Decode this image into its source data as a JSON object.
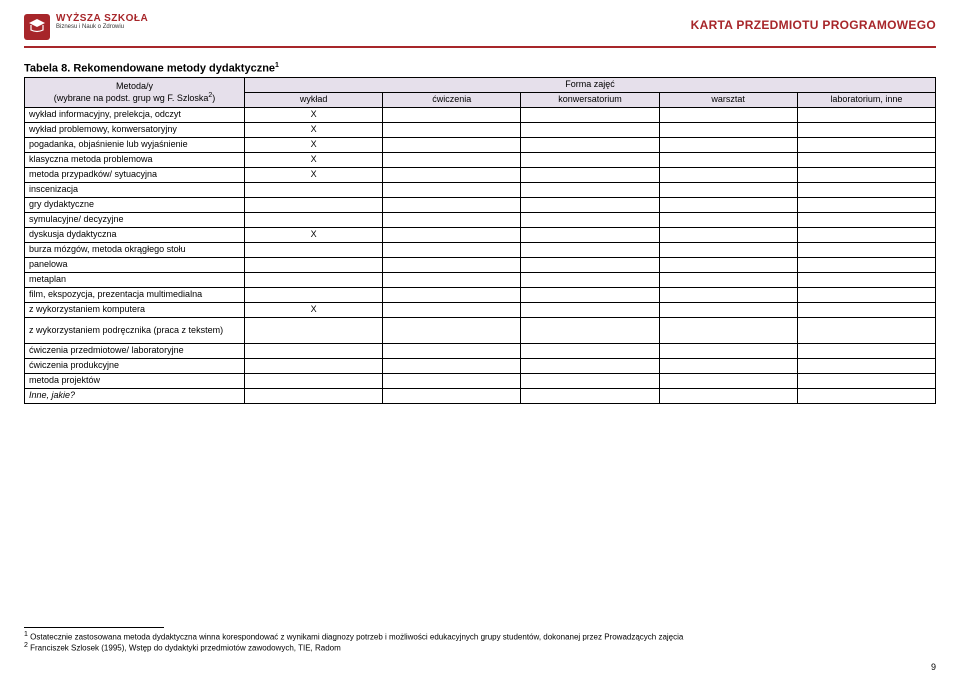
{
  "header": {
    "logo_top": "WYŻSZA SZKOŁA",
    "logo_sub": "Biznesu i Nauk o Zdrowiu",
    "page_header": "KARTA PRZEDMIOTU PROGRAMOWEGO"
  },
  "table": {
    "title": "Tabela 8. Rekomendowane metody dydaktyczne",
    "title_sup": "1",
    "method_header_line1": "Metoda/y",
    "method_header_line2_a": "(wybrane na podst. grup wg F. Szloska",
    "method_header_line2_sup": "2",
    "method_header_line2_b": ")",
    "form_header": "Forma zajęć",
    "columns": [
      "wykład",
      "ćwiczenia",
      "konwersatorium",
      "warsztat",
      "laboratorium, inne"
    ],
    "rows": [
      {
        "label": "wykład informacyjny, prelekcja, odczyt",
        "marks": [
          "X",
          "",
          "",
          "",
          ""
        ]
      },
      {
        "label": "wykład problemowy, konwersatoryjny",
        "marks": [
          "X",
          "",
          "",
          "",
          ""
        ]
      },
      {
        "label": "pogadanka, objaśnienie lub wyjaśnienie",
        "marks": [
          "X",
          "",
          "",
          "",
          ""
        ]
      },
      {
        "label": "klasyczna metoda problemowa",
        "marks": [
          "X",
          "",
          "",
          "",
          ""
        ]
      },
      {
        "label": "metoda przypadków/ sytuacyjna",
        "marks": [
          "X",
          "",
          "",
          "",
          ""
        ]
      },
      {
        "label": "inscenizacja",
        "marks": [
          "",
          "",
          "",
          "",
          ""
        ]
      },
      {
        "label": "gry dydaktyczne",
        "marks": [
          "",
          "",
          "",
          "",
          ""
        ]
      },
      {
        "label": "symulacyjne/ decyzyjne",
        "marks": [
          "",
          "",
          "",
          "",
          ""
        ]
      },
      {
        "label": "dyskusja dydaktyczna",
        "marks": [
          "X",
          "",
          "",
          "",
          ""
        ]
      },
      {
        "label": "burza mózgów, metoda okrągłego stołu",
        "marks": [
          "",
          "",
          "",
          "",
          ""
        ]
      },
      {
        "label": "panelowa",
        "marks": [
          "",
          "",
          "",
          "",
          ""
        ]
      },
      {
        "label": "metaplan",
        "marks": [
          "",
          "",
          "",
          "",
          ""
        ]
      },
      {
        "label": "film, ekspozycja, prezentacja multimedialna",
        "marks": [
          "",
          "",
          "",
          "",
          ""
        ]
      },
      {
        "label": "z wykorzystaniem komputera",
        "marks": [
          "X",
          "",
          "",
          "",
          ""
        ]
      },
      {
        "label": "z wykorzystaniem podręcznika (praca z tekstem)",
        "marks": [
          "",
          "",
          "",
          "",
          ""
        ],
        "multiline": true
      },
      {
        "label": "ćwiczenia przedmiotowe/ laboratoryjne",
        "marks": [
          "",
          "",
          "",
          "",
          ""
        ]
      },
      {
        "label": "ćwiczenia produkcyjne",
        "marks": [
          "",
          "",
          "",
          "",
          ""
        ]
      },
      {
        "label": "metoda projektów",
        "marks": [
          "",
          "",
          "",
          "",
          ""
        ]
      },
      {
        "label": "Inne, jakie?",
        "marks": [
          "",
          "",
          "",
          "",
          ""
        ],
        "italic": true
      }
    ]
  },
  "footnotes": {
    "f1_sup": "1",
    "f1": " Ostatecznie zastosowana metoda dydaktyczna winna korespondować z wynikami diagnozy potrzeb i możliwości edukacyjnych grupy studentów, dokonanej przez Prowadzących zajęcia",
    "f2_sup": "2",
    "f2": " Franciszek Szlosek (1995), Wstęp do dydaktyki przedmiotów zawodowych, TIE, Radom"
  },
  "page_number": "9",
  "colors": {
    "brand": "#a7262a",
    "lavender": "#e6e0eb",
    "border": "#000000",
    "bg": "#ffffff"
  }
}
